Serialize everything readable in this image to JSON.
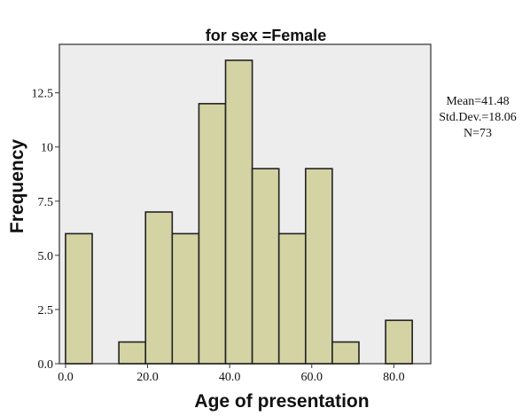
{
  "chart_data": {
    "type": "bar",
    "title_lines": [
      "",
      "for sex =Female"
    ],
    "xlabel": "Age of presentation",
    "ylabel": "Frequency",
    "bin_width": 6.5,
    "bins": [
      {
        "start": 0.0,
        "end": 6.5,
        "count": 6
      },
      {
        "start": 13.0,
        "end": 19.5,
        "count": 1
      },
      {
        "start": 19.5,
        "end": 26.0,
        "count": 7
      },
      {
        "start": 26.0,
        "end": 32.5,
        "count": 6
      },
      {
        "start": 32.5,
        "end": 39.0,
        "count": 12
      },
      {
        "start": 39.0,
        "end": 45.5,
        "count": 14
      },
      {
        "start": 45.5,
        "end": 52.0,
        "count": 9
      },
      {
        "start": 52.0,
        "end": 58.5,
        "count": 6
      },
      {
        "start": 58.5,
        "end": 65.0,
        "count": 9
      },
      {
        "start": 65.0,
        "end": 71.5,
        "count": 1
      },
      {
        "start": 78.0,
        "end": 84.5,
        "count": 2
      }
    ],
    "xlim": [
      -1.5,
      89.0
    ],
    "ylim": [
      0,
      14.0
    ],
    "x_ticks": [
      0,
      20,
      40,
      60,
      80
    ],
    "x_tick_labels": [
      "0.0",
      "20.0",
      "40.0",
      "60.0",
      "80.0"
    ],
    "y_ticks": [
      0,
      2.5,
      5.0,
      7.5,
      10,
      12.5
    ],
    "y_tick_labels": [
      "0.0",
      "2.5",
      "5.0",
      "7.5",
      "10",
      "12.5"
    ],
    "grid": false,
    "stats": {
      "mean": "Mean=41.48",
      "std": "Std.Dev.=18.06",
      "n": "N=73"
    },
    "colors": {
      "bar_fill": "#d3d3a4",
      "bar_stroke": "#222222",
      "plot_background": "#ededed",
      "frame": "#555555"
    }
  }
}
